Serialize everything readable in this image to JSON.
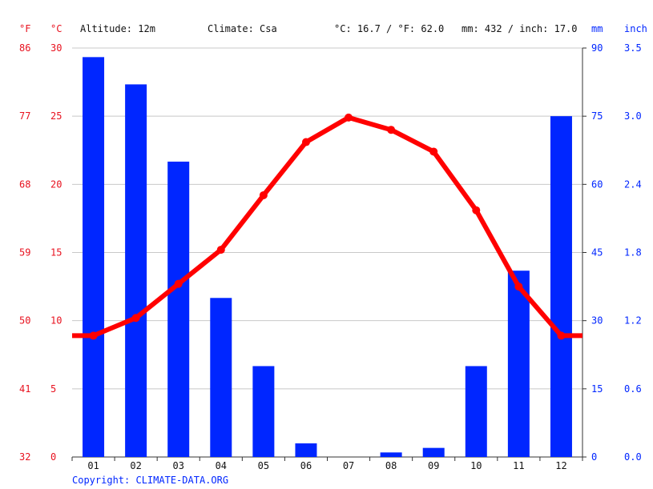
{
  "header": {
    "unit_f": "°F",
    "unit_c": "°C",
    "altitude": "Altitude: 12m",
    "climate": "Climate: Csa",
    "temp_avg": "°C: 16.7 / °F: 62.0",
    "precip_total": "mm: 432 / inch: 17.0",
    "unit_mm": "mm",
    "unit_inch": "inch"
  },
  "copyright": "Copyright: CLIMATE-DATA.ORG",
  "colors": {
    "temperature": "#ff0000",
    "precipitation": "#0026ff",
    "axis_temp": "#e8121f",
    "axis_precip": "#0026ff",
    "grid": "#c8c8c8"
  },
  "chart_data": {
    "type": "bar",
    "categories": [
      "01",
      "02",
      "03",
      "04",
      "05",
      "06",
      "07",
      "08",
      "09",
      "10",
      "11",
      "12"
    ],
    "series": [
      {
        "type": "bar",
        "axis": "right",
        "values": [
          88,
          82,
          65,
          35,
          20,
          3,
          0,
          1,
          2,
          20,
          41,
          75
        ]
      },
      {
        "type": "line",
        "axis": "left",
        "values": [
          8.9,
          10.2,
          12.7,
          15.2,
          19.2,
          23.1,
          24.9,
          24.0,
          22.4,
          18.1,
          12.5,
          8.9
        ]
      }
    ],
    "left_axis_c": {
      "ticks": [
        "0",
        "5",
        "10",
        "15",
        "20",
        "25",
        "30"
      ],
      "range": [
        0,
        30
      ]
    },
    "left_axis_f": {
      "ticks": [
        "32",
        "41",
        "50",
        "59",
        "68",
        "77",
        "86"
      ]
    },
    "right_axis_mm": {
      "ticks": [
        "0",
        "15",
        "30",
        "45",
        "60",
        "75",
        "90"
      ],
      "range": [
        0,
        90
      ]
    },
    "right_axis_inch": {
      "ticks": [
        "0.0",
        "0.6",
        "1.2",
        "1.8",
        "2.4",
        "3.0",
        "3.5"
      ]
    },
    "grid": true
  }
}
